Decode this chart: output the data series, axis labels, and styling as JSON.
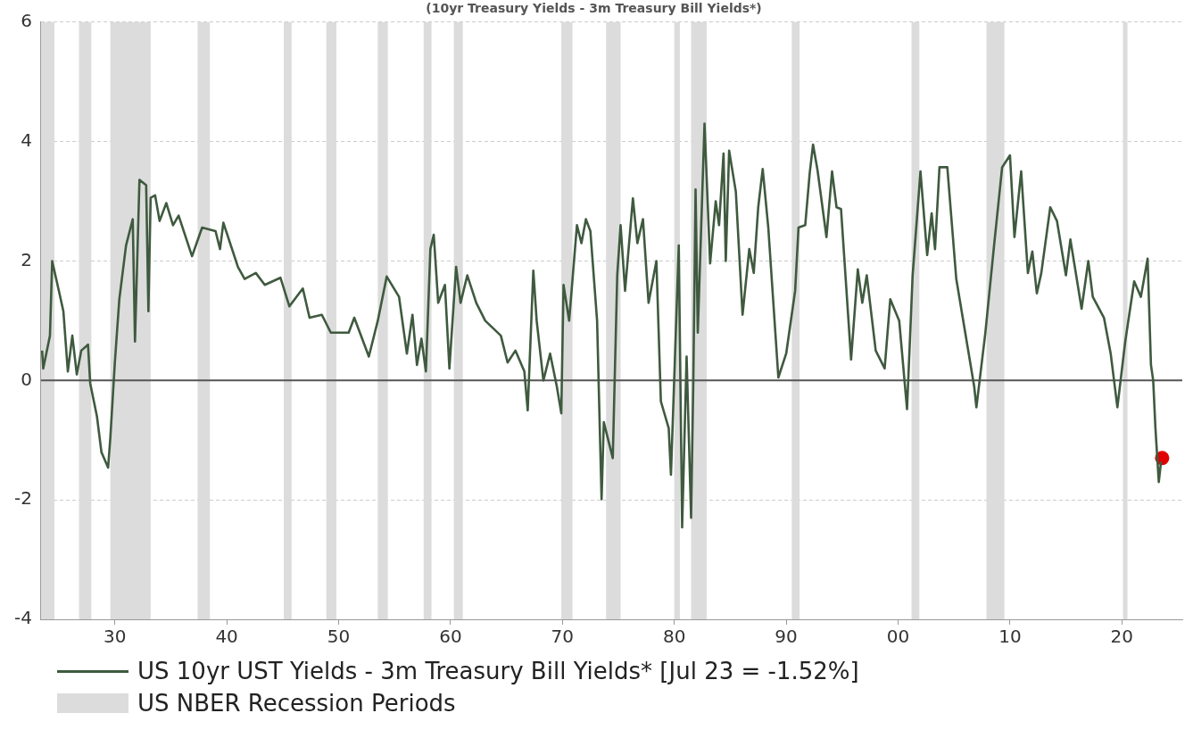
{
  "chart_data": {
    "type": "line",
    "title": "(10yr Treasury Yields - 3m Treasury Bill Yields*)",
    "xlim": [
      1923.4,
      2025.4
    ],
    "xticks": [
      {
        "value": 1930,
        "label": "30"
      },
      {
        "value": 1940,
        "label": "40"
      },
      {
        "value": 1950,
        "label": "50"
      },
      {
        "value": 1960,
        "label": "60"
      },
      {
        "value": 1970,
        "label": "70"
      },
      {
        "value": 1980,
        "label": "80"
      },
      {
        "value": 1990,
        "label": "90"
      },
      {
        "value": 2000,
        "label": "00"
      },
      {
        "value": 2010,
        "label": "10"
      },
      {
        "value": 2020,
        "label": "20"
      }
    ],
    "ylim": [
      -4,
      6
    ],
    "yticks": [
      -4,
      -2,
      0,
      2,
      4,
      6
    ],
    "grid": "y",
    "legend": "bottom left",
    "series": [
      {
        "name": "US 10yr UST Yields - 3m Treasury Bill Yields* [Jul 23 = -1.52%]",
        "type": "line",
        "color": "#3f5a3f",
        "marker": "none",
        "x": [
          1923.5,
          1923.6,
          1924.2,
          1924.4,
          1925.0,
          1925.4,
          1925.8,
          1926.2,
          1926.6,
          1927.0,
          1927.6,
          1927.8,
          1928.4,
          1928.8,
          1929.4,
          1929.6,
          1930.0,
          1930.4,
          1931.0,
          1931.6,
          1931.8,
          1932.2,
          1932.8,
          1933.0,
          1933.2,
          1933.6,
          1934.0,
          1934.6,
          1935.2,
          1935.7,
          1936.9,
          1937.8,
          1939.0,
          1939.4,
          1939.7,
          1941.0,
          1941.6,
          1942.6,
          1943.4,
          1944.8,
          1945.6,
          1946.8,
          1947.4,
          1948.5,
          1949.3,
          1950.9,
          1951.4,
          1952.7,
          1953.5,
          1954.3,
          1955.4,
          1956.1,
          1956.6,
          1957.0,
          1957.4,
          1957.8,
          1958.2,
          1958.5,
          1958.9,
          1959.5,
          1959.9,
          1960.5,
          1960.9,
          1961.5,
          1962.3,
          1963.1,
          1964.5,
          1965.1,
          1965.8,
          1966.6,
          1966.9,
          1967.4,
          1967.7,
          1968.3,
          1968.9,
          1969.5,
          1969.9,
          1970.1,
          1970.6,
          1971.3,
          1971.7,
          1972.1,
          1972.5,
          1973.1,
          1973.5,
          1973.7,
          1974.5,
          1974.9,
          1975.2,
          1975.6,
          1976.3,
          1976.7,
          1977.2,
          1977.7,
          1978.4,
          1978.8,
          1979.5,
          1979.7,
          1980.4,
          1980.7,
          1981.1,
          1981.5,
          1981.7,
          1981.9,
          1982.1,
          1982.7,
          1983.2,
          1983.7,
          1984.0,
          1984.4,
          1984.6,
          1984.9,
          1985.5,
          1986.1,
          1986.7,
          1987.1,
          1987.5,
          1987.9,
          1988.4,
          1989.3,
          1990.0,
          1990.8,
          1991.1,
          1991.7,
          1992.1,
          1992.4,
          1992.8,
          1993.6,
          1994.1,
          1994.5,
          1994.9,
          1995.8,
          1996.4,
          1996.8,
          1997.2,
          1998.0,
          1998.8,
          1999.3,
          2000.1,
          2000.8,
          2001.3,
          2002.0,
          2002.6,
          2003.0,
          2003.3,
          2003.7,
          2004.4,
          2005.2,
          2006.8,
          2007.0,
          2007.8,
          2008.6,
          2009.3,
          2010.0,
          2010.4,
          2011.0,
          2011.6,
          2012.0,
          2012.4,
          2012.8,
          2013.6,
          2014.2,
          2015.0,
          2015.4,
          2016.4,
          2017.0,
          2017.4,
          2018.4,
          2019.0,
          2019.6,
          2020.3,
          2021.1,
          2021.7,
          2022.3,
          2022.6,
          2022.8,
          2023.0,
          2023.3,
          2023.5
        ],
        "values": [
          0.5,
          0.2,
          0.75,
          2.0,
          1.5,
          1.16,
          0.15,
          0.75,
          0.1,
          0.5,
          0.6,
          -0.05,
          -0.6,
          -1.2,
          -1.46,
          -0.95,
          0.3,
          1.36,
          2.26,
          2.7,
          0.65,
          3.36,
          3.27,
          1.16,
          3.06,
          3.1,
          2.67,
          2.97,
          2.6,
          2.76,
          2.08,
          2.56,
          2.5,
          2.2,
          2.64,
          1.9,
          1.7,
          1.8,
          1.6,
          1.72,
          1.24,
          1.54,
          1.05,
          1.1,
          0.8,
          0.8,
          1.05,
          0.4,
          1.0,
          1.74,
          1.4,
          0.45,
          1.1,
          0.26,
          0.7,
          0.15,
          2.2,
          2.44,
          1.3,
          1.6,
          0.2,
          1.9,
          1.3,
          1.76,
          1.3,
          1.0,
          0.75,
          0.3,
          0.5,
          0.15,
          -0.5,
          1.84,
          1.0,
          0,
          0.45,
          -0.1,
          -0.55,
          1.6,
          1.0,
          2.6,
          2.3,
          2.7,
          2.5,
          1.0,
          -1.99,
          -0.7,
          -1.3,
          1.76,
          2.6,
          1.5,
          3.05,
          2.3,
          2.7,
          1.3,
          2.0,
          -0.35,
          -0.8,
          -1.58,
          2.26,
          -2.46,
          0.4,
          -2.3,
          0,
          3.2,
          0.8,
          4.3,
          1.96,
          3.0,
          2.6,
          3.8,
          2.0,
          3.85,
          3.16,
          1.1,
          2.2,
          1.8,
          2.9,
          3.54,
          2.56,
          0.05,
          0.45,
          1.5,
          2.56,
          2.6,
          3.47,
          3.95,
          3.52,
          2.4,
          3.5,
          2.9,
          2.87,
          0.35,
          1.86,
          1.3,
          1.76,
          0.5,
          0.2,
          1.36,
          1.0,
          -0.48,
          1.76,
          3.5,
          2.1,
          2.8,
          2.2,
          3.57,
          3.57,
          1.7,
          -0.1,
          -0.45,
          0.8,
          2.3,
          3.57,
          3.77,
          2.4,
          3.5,
          1.8,
          2.16,
          1.46,
          1.8,
          2.9,
          2.67,
          1.76,
          2.36,
          1.2,
          2.0,
          1.4,
          1.05,
          0.45,
          -0.45,
          0.65,
          1.66,
          1.4,
          2.04,
          0.26,
          0.0,
          -0.8,
          -1.7,
          -1.36
        ]
      },
      {
        "type": "scatter",
        "color": "#e00000",
        "marker": "circle",
        "x": [
          2023.6
        ],
        "values": [
          -1.3
        ]
      }
    ],
    "ref_lines": [
      {
        "axis": "y",
        "value": 0,
        "color": "#555555"
      }
    ],
    "bands": [
      {
        "axis": "x",
        "from": 1923.4,
        "to": 1924.6,
        "label": "US NBER Recession Periods",
        "color": "#dcdcdc"
      },
      {
        "axis": "x",
        "from": 1926.8,
        "to": 1927.9,
        "color": "#dcdcdc"
      },
      {
        "axis": "x",
        "from": 1929.6,
        "to": 1933.2,
        "color": "#dcdcdc"
      },
      {
        "axis": "x",
        "from": 1937.4,
        "to": 1938.5,
        "color": "#dcdcdc"
      },
      {
        "axis": "x",
        "from": 1945.1,
        "to": 1945.8,
        "color": "#dcdcdc"
      },
      {
        "axis": "x",
        "from": 1948.9,
        "to": 1949.8,
        "color": "#dcdcdc"
      },
      {
        "axis": "x",
        "from": 1953.5,
        "to": 1954.4,
        "color": "#dcdcdc"
      },
      {
        "axis": "x",
        "from": 1957.6,
        "to": 1958.3,
        "color": "#dcdcdc"
      },
      {
        "axis": "x",
        "from": 1960.3,
        "to": 1961.1,
        "color": "#dcdcdc"
      },
      {
        "axis": "x",
        "from": 1969.9,
        "to": 1970.9,
        "color": "#dcdcdc"
      },
      {
        "axis": "x",
        "from": 1973.9,
        "to": 1975.2,
        "color": "#dcdcdc"
      },
      {
        "axis": "x",
        "from": 1980.0,
        "to": 1980.5,
        "color": "#dcdcdc"
      },
      {
        "axis": "x",
        "from": 1981.5,
        "to": 1982.9,
        "color": "#dcdcdc"
      },
      {
        "axis": "x",
        "from": 1990.5,
        "to": 1991.2,
        "color": "#dcdcdc"
      },
      {
        "axis": "x",
        "from": 2001.2,
        "to": 2001.9,
        "color": "#dcdcdc"
      },
      {
        "axis": "x",
        "from": 2007.9,
        "to": 2009.5,
        "color": "#dcdcdc"
      },
      {
        "axis": "x",
        "from": 2020.1,
        "to": 2020.4,
        "color": "#dcdcdc"
      }
    ]
  }
}
